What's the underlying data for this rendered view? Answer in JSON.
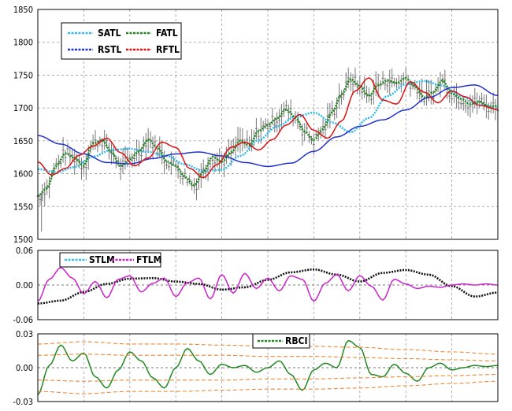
{
  "chart_data": [
    {
      "type": "line",
      "title": "",
      "ylim": [
        1500,
        1850
      ],
      "yticks": [
        "1850",
        "1800",
        "1750",
        "1700",
        "1650",
        "1600",
        "1550",
        "1500"
      ],
      "grid": true,
      "legend_position": "top-left",
      "legend": [
        "SATL",
        "FATL",
        "RSTL",
        "RFTL"
      ],
      "price_bars": {
        "name": "",
        "color": "#777777"
      },
      "series": [
        {
          "name": "SATL",
          "color": "#33bbee",
          "x": [
            0,
            4,
            8,
            12,
            16,
            20,
            24,
            28,
            32,
            36,
            40,
            44,
            48,
            52,
            56,
            60,
            64,
            68,
            72,
            76,
            80,
            84,
            88,
            92,
            96,
            100
          ],
          "values": [
            1607,
            1602,
            1610,
            1626,
            1636,
            1638,
            1633,
            1627,
            1614,
            1604,
            1606,
            1627,
            1651,
            1672,
            1686,
            1693,
            1678,
            1663,
            1685,
            1718,
            1736,
            1741,
            1734,
            1718,
            1705,
            1702
          ]
        },
        {
          "name": "FATL",
          "color": "#228822",
          "x": [
            0,
            2,
            4,
            6,
            8,
            10,
            12,
            14,
            16,
            18,
            20,
            22,
            24,
            26,
            28,
            30,
            32,
            34,
            36,
            38,
            40,
            42,
            44,
            46,
            48,
            50,
            52,
            54,
            56,
            58,
            60,
            62,
            64,
            66,
            68,
            70,
            72,
            74,
            76,
            78,
            80,
            82,
            84,
            86,
            88,
            90,
            92,
            94,
            96,
            98,
            100
          ],
          "values": [
            1566,
            1578,
            1612,
            1631,
            1624,
            1612,
            1646,
            1651,
            1633,
            1611,
            1622,
            1634,
            1652,
            1640,
            1619,
            1612,
            1595,
            1582,
            1603,
            1626,
            1618,
            1632,
            1650,
            1643,
            1665,
            1674,
            1684,
            1698,
            1686,
            1664,
            1651,
            1668,
            1694,
            1720,
            1744,
            1733,
            1718,
            1735,
            1742,
            1738,
            1745,
            1733,
            1716,
            1724,
            1742,
            1722,
            1714,
            1706,
            1710,
            1702,
            1703
          ]
        },
        {
          "name": "RSTL",
          "color": "#2233cc",
          "x": [
            0,
            5,
            10,
            15,
            20,
            25,
            30,
            35,
            40,
            45,
            50,
            55,
            60,
            65,
            70,
            75,
            80,
            85,
            90,
            95,
            100
          ],
          "values": [
            1658,
            1645,
            1630,
            1617,
            1615,
            1623,
            1630,
            1633,
            1627,
            1617,
            1611,
            1616,
            1634,
            1656,
            1672,
            1682,
            1697,
            1716,
            1731,
            1735,
            1719
          ]
        },
        {
          "name": "RFTL",
          "color": "#dd1111",
          "x": [
            0,
            3,
            6,
            9,
            12,
            15,
            18,
            21,
            24,
            27,
            30,
            33,
            36,
            39,
            42,
            45,
            48,
            51,
            54,
            57,
            60,
            63,
            66,
            69,
            72,
            75,
            78,
            81,
            84,
            87,
            90,
            93,
            96,
            100
          ],
          "values": [
            1618,
            1598,
            1608,
            1628,
            1642,
            1654,
            1632,
            1612,
            1624,
            1648,
            1640,
            1608,
            1594,
            1614,
            1640,
            1648,
            1636,
            1652,
            1674,
            1690,
            1666,
            1654,
            1680,
            1726,
            1746,
            1712,
            1706,
            1740,
            1724,
            1708,
            1726,
            1717,
            1704,
            1698
          ]
        }
      ]
    },
    {
      "type": "line",
      "title": "",
      "ylim": [
        -0.06,
        0.06
      ],
      "yticks": [
        "0.06",
        "0.00",
        "-0.06"
      ],
      "grid": true,
      "legend_position": "top-left",
      "legend": [
        "STLM",
        "FTLM"
      ],
      "series": [
        {
          "name": "STLM",
          "color": "#111111",
          "x": [
            0,
            5,
            10,
            15,
            20,
            25,
            30,
            35,
            40,
            45,
            50,
            55,
            60,
            65,
            70,
            75,
            80,
            85,
            90,
            95,
            100
          ],
          "values": [
            -0.032,
            -0.027,
            -0.012,
            0.002,
            0.011,
            0.012,
            0.006,
            0.002,
            -0.008,
            -0.004,
            0.009,
            0.022,
            0.027,
            0.018,
            0.006,
            0.021,
            0.026,
            0.018,
            -0.002,
            -0.02,
            -0.013
          ]
        },
        {
          "name": "FTLM",
          "color": "#cc22cc",
          "x": [
            0,
            2.5,
            5,
            7.5,
            10,
            12.5,
            15,
            17.5,
            20,
            22.5,
            25,
            27.5,
            30,
            32.5,
            35,
            37.5,
            40,
            42.5,
            45,
            47.5,
            50,
            52.5,
            55,
            57.5,
            60,
            62.5,
            65,
            67.5,
            70,
            72.5,
            75,
            77.5,
            80,
            82.5,
            85,
            87.5,
            90,
            92.5,
            95,
            97.5,
            100
          ],
          "values": [
            -0.028,
            0.01,
            0.03,
            0.012,
            -0.015,
            0.006,
            -0.022,
            0.01,
            0.016,
            -0.012,
            0.003,
            0.012,
            -0.02,
            0.004,
            0.012,
            -0.024,
            0.018,
            -0.014,
            0.02,
            -0.006,
            0.012,
            -0.01,
            0.016,
            0.01,
            -0.028,
            0.003,
            0.018,
            -0.01,
            0.016,
            -0.002,
            -0.026,
            0.01,
            0.002,
            -0.006,
            -0.002,
            -0.004,
            0.0,
            0.002,
            0.0,
            0.002,
            0.0
          ]
        }
      ]
    },
    {
      "type": "line",
      "title": "",
      "ylim": [
        -0.03,
        0.03
      ],
      "yticks": [
        "0.03",
        "0.00",
        "-0.03"
      ],
      "grid": true,
      "legend_position": "top-center",
      "legend": [
        "RBCI"
      ],
      "series": [
        {
          "name": "RBCI",
          "color": "#228822",
          "x": [
            0,
            2.5,
            5,
            7.5,
            10,
            12.5,
            15,
            17.5,
            20,
            22.5,
            25,
            27.5,
            30,
            32.5,
            35,
            37.5,
            40,
            42.5,
            45,
            47.5,
            50,
            52.5,
            55,
            57.5,
            60,
            62.5,
            65,
            67.5,
            70,
            72.5,
            75,
            77.5,
            80,
            82.5,
            85,
            87.5,
            90,
            92.5,
            95,
            97.5,
            100
          ],
          "values": [
            -0.024,
            0.002,
            0.02,
            0.006,
            0.013,
            -0.008,
            -0.018,
            -0.002,
            0.014,
            0.006,
            -0.009,
            -0.018,
            0.0,
            0.017,
            0.006,
            -0.006,
            0.003,
            0.0,
            0.002,
            -0.004,
            0.0,
            0.006,
            -0.006,
            -0.02,
            -0.002,
            0.004,
            0.0,
            0.024,
            0.018,
            -0.006,
            -0.008,
            0.003,
            -0.005,
            -0.012,
            0.0,
            0.004,
            -0.002,
            0.0,
            0.002,
            0.001,
            0.002
          ]
        },
        {
          "name": "",
          "color": "#ee8833",
          "x": [
            0,
            10,
            20,
            30,
            40,
            50,
            60,
            70,
            80,
            90,
            100
          ],
          "values": [
            0.021,
            0.023,
            0.021,
            0.021,
            0.02,
            0.019,
            0.019,
            0.018,
            0.016,
            0.014,
            0.012
          ]
        },
        {
          "name": "",
          "color": "#ee8833",
          "x": [
            0,
            10,
            20,
            30,
            40,
            50,
            60,
            70,
            80,
            90,
            100
          ],
          "values": [
            0.011,
            0.012,
            0.011,
            0.011,
            0.011,
            0.01,
            0.01,
            0.009,
            0.008,
            0.007,
            0.006
          ]
        },
        {
          "name": "",
          "color": "#ee8833",
          "x": [
            0,
            10,
            20,
            30,
            40,
            50,
            60,
            70,
            80,
            90,
            100
          ],
          "values": [
            -0.011,
            -0.012,
            -0.011,
            -0.011,
            -0.011,
            -0.01,
            -0.01,
            -0.009,
            -0.008,
            -0.007,
            -0.006
          ]
        },
        {
          "name": "",
          "color": "#ee8833",
          "x": [
            0,
            10,
            20,
            30,
            40,
            50,
            60,
            70,
            80,
            90,
            100
          ],
          "values": [
            -0.021,
            -0.023,
            -0.021,
            -0.021,
            -0.02,
            -0.019,
            -0.019,
            -0.018,
            -0.016,
            -0.014,
            -0.012
          ]
        }
      ]
    }
  ]
}
